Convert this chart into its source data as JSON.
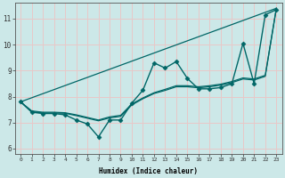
{
  "xlabel": "Humidex (Indice chaleur)",
  "ylabel": "",
  "bg_color": "#cce8e8",
  "grid_color": "#e8c8c8",
  "line_color": "#006666",
  "xlim": [
    -0.5,
    23.5
  ],
  "ylim": [
    5.8,
    11.6
  ],
  "yticks": [
    6,
    7,
    8,
    9,
    10,
    11
  ],
  "xticks": [
    0,
    1,
    2,
    3,
    4,
    5,
    6,
    7,
    8,
    9,
    10,
    11,
    12,
    13,
    14,
    15,
    16,
    17,
    18,
    19,
    20,
    21,
    22,
    23
  ],
  "series": [
    {
      "x": [
        0,
        1,
        2,
        3,
        4,
        5,
        6,
        7,
        8,
        9,
        10,
        11,
        12,
        13,
        14,
        15,
        16,
        17,
        18,
        19,
        20,
        21,
        22,
        23
      ],
      "y": [
        7.8,
        7.4,
        7.35,
        7.35,
        7.3,
        7.1,
        6.95,
        6.45,
        7.1,
        7.1,
        7.75,
        8.25,
        9.3,
        9.1,
        9.35,
        8.7,
        8.3,
        8.3,
        8.35,
        8.5,
        10.05,
        8.5,
        11.15,
        11.35
      ],
      "marker": "D",
      "markersize": 2.5,
      "linewidth": 1.0,
      "has_marker": true
    },
    {
      "x": [
        0,
        1,
        2,
        3,
        4,
        5,
        6,
        7,
        8,
        9,
        10,
        11,
        12,
        13,
        14,
        15,
        16,
        17,
        18,
        19,
        20,
        21,
        22,
        23
      ],
      "y": [
        7.8,
        7.45,
        7.4,
        7.4,
        7.38,
        7.3,
        7.2,
        7.1,
        7.22,
        7.28,
        7.72,
        7.95,
        8.15,
        8.28,
        8.42,
        8.42,
        8.38,
        8.42,
        8.48,
        8.58,
        8.72,
        8.68,
        8.82,
        11.4
      ],
      "marker": null,
      "markersize": 0,
      "linewidth": 0.9,
      "has_marker": false
    },
    {
      "x": [
        0,
        1,
        2,
        3,
        4,
        5,
        6,
        7,
        8,
        9,
        10,
        11,
        12,
        13,
        14,
        15,
        16,
        17,
        18,
        19,
        20,
        21,
        22,
        23
      ],
      "y": [
        7.8,
        7.42,
        7.37,
        7.37,
        7.36,
        7.27,
        7.17,
        7.07,
        7.18,
        7.24,
        7.68,
        7.92,
        8.12,
        8.24,
        8.38,
        8.38,
        8.34,
        8.38,
        8.44,
        8.54,
        8.68,
        8.64,
        8.78,
        11.4
      ],
      "marker": null,
      "markersize": 0,
      "linewidth": 0.9,
      "has_marker": false
    },
    {
      "x": [
        0,
        23
      ],
      "y": [
        7.8,
        11.4
      ],
      "marker": null,
      "markersize": 0,
      "linewidth": 0.9,
      "has_marker": false
    }
  ]
}
